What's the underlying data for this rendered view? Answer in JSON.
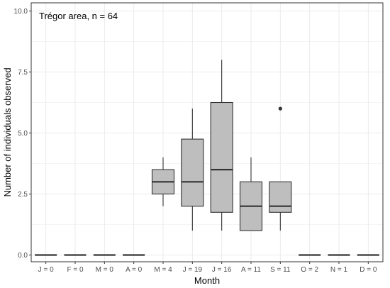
{
  "chart_data": {
    "type": "box",
    "annotation": "Trégor area, n = 64",
    "xlabel": "Month",
    "ylabel": "Number of individuals observed",
    "ylim": [
      0,
      10
    ],
    "yticks": [
      0,
      2.5,
      5,
      7.5,
      10
    ],
    "ytick_labels": [
      "0.0",
      "2.5",
      "5.0",
      "7.5",
      "10.0"
    ],
    "grid": true,
    "legend": "none",
    "colors": {
      "box_fill": "#bebebe",
      "box_stroke": "#333333",
      "grid": "#ebebeb",
      "panel_border": "#333333",
      "outlier": "#333333"
    },
    "categories": [
      "J = 0",
      "F = 0",
      "M = 0",
      "A = 0",
      "M = 4",
      "J = 19",
      "J = 16",
      "A = 11",
      "S = 11",
      "O = 2",
      "N = 1",
      "D = 0"
    ],
    "boxes": [
      {
        "min": 0,
        "q1": 0,
        "median": 0,
        "q3": 0,
        "max": 0,
        "outliers": []
      },
      {
        "min": 0,
        "q1": 0,
        "median": 0,
        "q3": 0,
        "max": 0,
        "outliers": []
      },
      {
        "min": 0,
        "q1": 0,
        "median": 0,
        "q3": 0,
        "max": 0,
        "outliers": []
      },
      {
        "min": 0,
        "q1": 0,
        "median": 0,
        "q3": 0,
        "max": 0,
        "outliers": []
      },
      {
        "min": 2,
        "q1": 2.5,
        "median": 3,
        "q3": 3.5,
        "max": 4,
        "outliers": []
      },
      {
        "min": 1,
        "q1": 2,
        "median": 3,
        "q3": 4.75,
        "max": 6,
        "outliers": []
      },
      {
        "min": 1,
        "q1": 1.75,
        "median": 3.5,
        "q3": 6.25,
        "max": 8,
        "outliers": []
      },
      {
        "min": 1,
        "q1": 1,
        "median": 2,
        "q3": 3,
        "max": 4,
        "outliers": []
      },
      {
        "min": 1,
        "q1": 1.75,
        "median": 2,
        "q3": 3,
        "max": 3,
        "outliers": [
          6
        ]
      },
      {
        "min": 0,
        "q1": 0,
        "median": 0,
        "q3": 0,
        "max": 0,
        "outliers": []
      },
      {
        "min": 0,
        "q1": 0,
        "median": 0,
        "q3": 0,
        "max": 0,
        "outliers": []
      },
      {
        "min": 0,
        "q1": 0,
        "median": 0,
        "q3": 0,
        "max": 0,
        "outliers": []
      }
    ]
  }
}
